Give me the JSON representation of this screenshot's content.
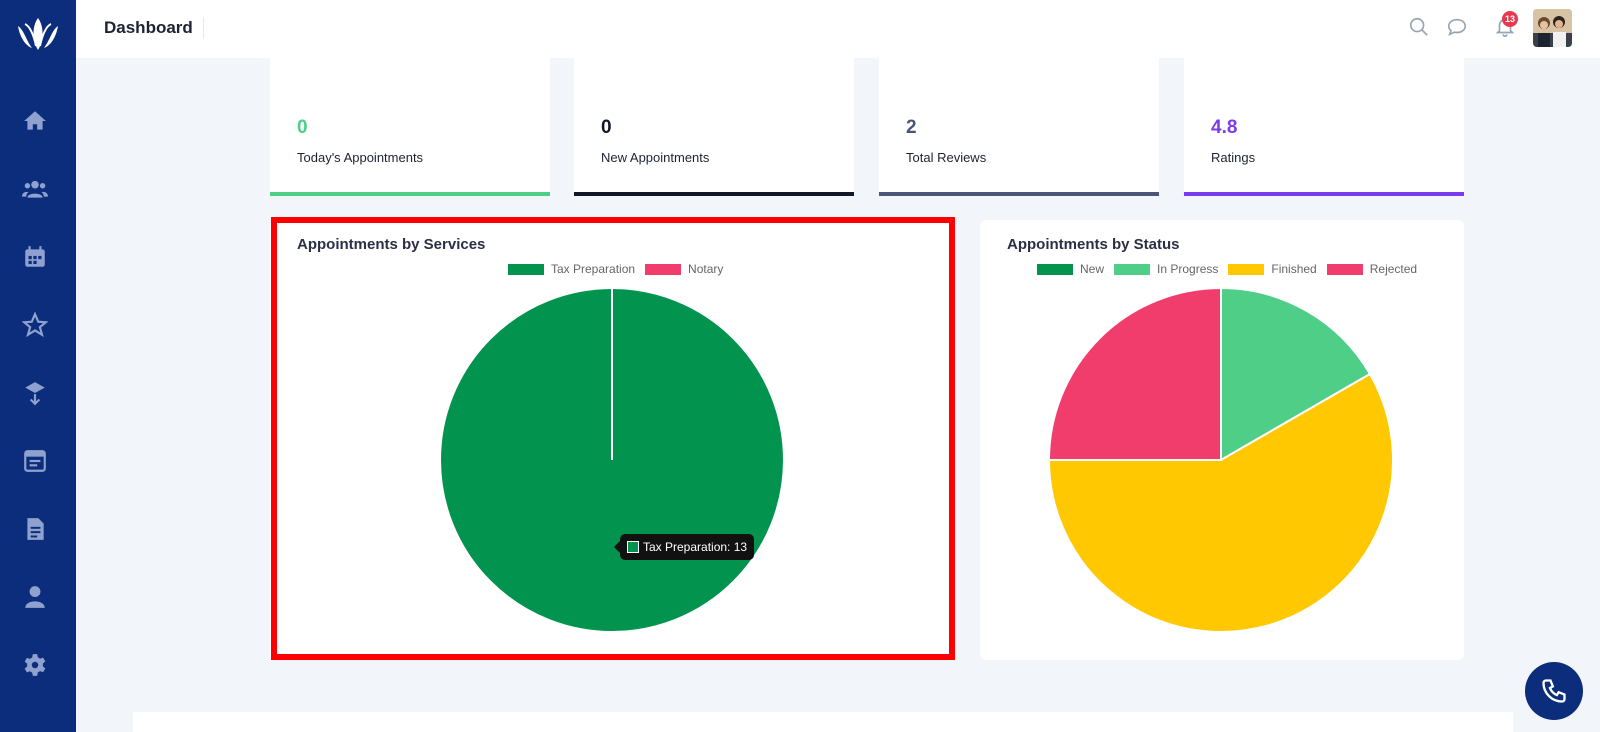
{
  "header": {
    "title": "Dashboard",
    "notification_count": "13"
  },
  "sidebar": {
    "items": [
      {
        "icon": "home-icon"
      },
      {
        "icon": "users-icon"
      },
      {
        "icon": "calendar-icon"
      },
      {
        "icon": "star-icon"
      },
      {
        "icon": "box-icon"
      },
      {
        "icon": "calendar-list-icon"
      },
      {
        "icon": "document-icon"
      },
      {
        "icon": "user-icon"
      },
      {
        "icon": "gear-icon"
      }
    ]
  },
  "stats": [
    {
      "value": "0",
      "label": "Today's Appointments",
      "color": "#4fce87"
    },
    {
      "value": "0",
      "label": "New Appointments",
      "color": "#111827"
    },
    {
      "value": "2",
      "label": "Total Reviews",
      "color": "#4b5578"
    },
    {
      "value": "4.8",
      "label": "Ratings",
      "color": "#7c3aed"
    }
  ],
  "services_chart": {
    "title": "Appointments by Services",
    "legend": [
      "Tax Preparation",
      "Notary"
    ],
    "tooltip": "Tax Preparation: 13"
  },
  "status_chart": {
    "title": "Appointments by Status",
    "legend": [
      "New",
      "In Progress",
      "Finished",
      "Rejected"
    ]
  },
  "chart_data": [
    {
      "type": "pie",
      "title": "Appointments by Services",
      "categories": [
        "Tax Preparation",
        "Notary"
      ],
      "values": [
        13,
        0
      ],
      "colors": [
        "#02944f",
        "#f03d6b"
      ]
    },
    {
      "type": "pie",
      "title": "Appointments by Status",
      "categories": [
        "New",
        "In Progress",
        "Finished",
        "Rejected"
      ],
      "values": [
        0,
        2,
        7,
        3
      ],
      "colors": [
        "#02944f",
        "#4fce87",
        "#ffc800",
        "#f03d6b"
      ]
    }
  ]
}
